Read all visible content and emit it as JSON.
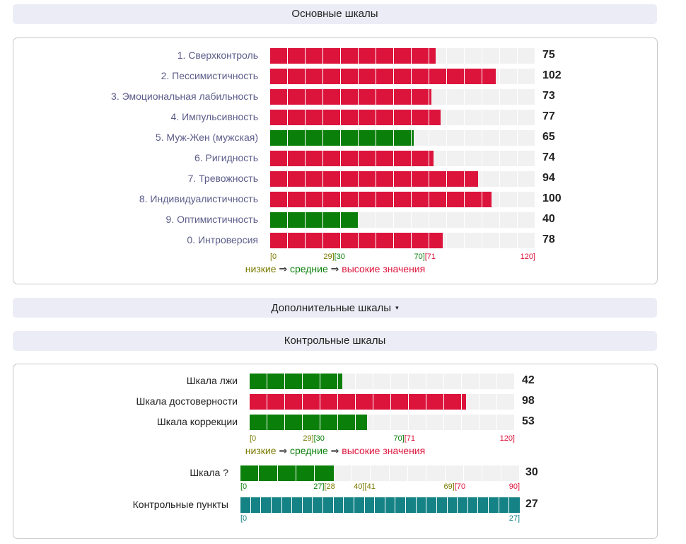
{
  "colors": {
    "red": "#dc143c",
    "green": "#0a7f0a",
    "teal": "#158385",
    "olive": "#7a7a00",
    "empty": "#f1f1f1"
  },
  "headers": {
    "main": "Основные шкалы",
    "extra": "Дополнительные шкалы",
    "control": "Контрольные шкалы"
  },
  "extra_caret": "▾",
  "main_scales": [
    {
      "label": "1. Сверхконтроль",
      "value": 75,
      "color": "red"
    },
    {
      "label": "2. Пессимистичность",
      "value": 102,
      "color": "red"
    },
    {
      "label": "3. Эмоциональная лабильность",
      "value": 73,
      "color": "red"
    },
    {
      "label": "4. Импульсивность",
      "value": 77,
      "color": "red"
    },
    {
      "label": "5. Муж-Жен (мужская)",
      "value": 65,
      "color": "green"
    },
    {
      "label": "6. Ригидность",
      "value": 74,
      "color": "red"
    },
    {
      "label": "7. Тревожность",
      "value": 94,
      "color": "red"
    },
    {
      "label": "8. Индивидуалистичность",
      "value": 100,
      "color": "red"
    },
    {
      "label": "9. Оптимистичность",
      "value": 40,
      "color": "green"
    },
    {
      "label": "0. Интроверсия",
      "value": 78,
      "color": "red"
    }
  ],
  "main_max": 120,
  "main_ticks": {
    "t0": "[0",
    "t29": "29]",
    "t30": "[30",
    "t70": "70]",
    "t71": "[71",
    "t120": "120]"
  },
  "legend": {
    "low": "низкие",
    "arrow1": " ⇒ ",
    "mid": "средние",
    "arrow2": " ⇒ ",
    "high": "высокие значения"
  },
  "control_scales": [
    {
      "label": "Шкала лжи",
      "value": 42,
      "color": "green"
    },
    {
      "label": "Шкала достоверности",
      "value": 98,
      "color": "red"
    },
    {
      "label": "Шкала коррекции",
      "value": 53,
      "color": "green"
    }
  ],
  "control_max": 120,
  "control_ticks": {
    "t0": "[0",
    "t29": "29]",
    "t30": "[30",
    "t70": "70]",
    "t71": "[71",
    "t120": "120]"
  },
  "question_scale": {
    "label": "Шкала ?",
    "value": 30,
    "max": 90,
    "color": "green"
  },
  "question_ticks": {
    "t0": "[0",
    "t27": "27]",
    "t28": "[28",
    "t40": "40]",
    "t41": "[41",
    "t69": "69]",
    "t70": "[70",
    "t90": "90]"
  },
  "control_points": {
    "label": "Контрольные пункты",
    "value": 27,
    "max": 27,
    "color": "teal"
  },
  "points_ticks": {
    "t0": "[0",
    "t27": "27]"
  }
}
